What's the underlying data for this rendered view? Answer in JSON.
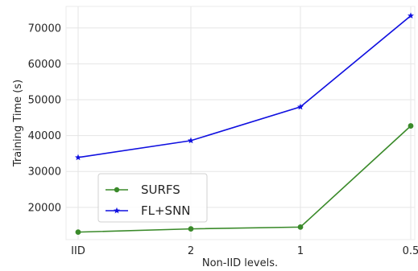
{
  "chart_data": {
    "type": "line",
    "title": "",
    "xlabel": "Non-IID levels.",
    "ylabel": "Training Time (s)",
    "categories": [
      "IID",
      "2",
      "1",
      "0.5"
    ],
    "ylim": [
      11000,
      76000
    ],
    "yticks": [
      20000,
      30000,
      40000,
      50000,
      60000,
      70000
    ],
    "ytick_labels": [
      "20000",
      "30000",
      "40000",
      "50000",
      "60000",
      "70000"
    ],
    "grid": true,
    "legend_position": "lower-left",
    "series": [
      {
        "name": "SURFS",
        "color": "#3a8a2a",
        "marker": "circle",
        "values": [
          13100,
          14000,
          14500,
          42700
        ]
      },
      {
        "name": "FL+SNN",
        "color": "#1010e0",
        "marker": "star",
        "values": [
          33900,
          38600,
          48000,
          73400
        ]
      }
    ]
  }
}
